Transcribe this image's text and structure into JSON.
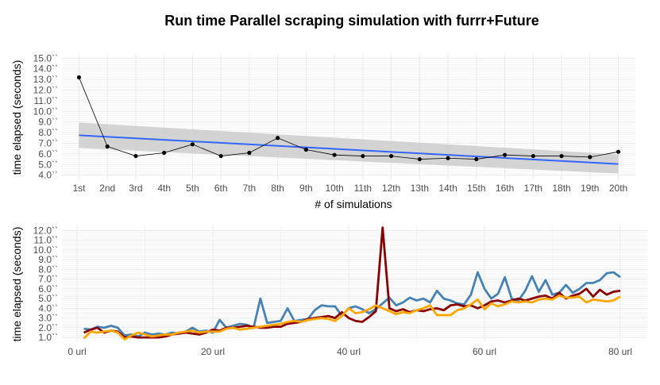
{
  "title": "Run time Parallel scraping simulation with furrr+Future",
  "colors": {
    "series_point_line": "#000000",
    "trend_line": "#3366ff",
    "confidence_band": "#cccccc",
    "dark_red": "#8b0000",
    "steel_blue": "#4682b4",
    "orange": "#ffa500",
    "grid": "#ebebeb"
  },
  "chart_data": [
    {
      "type": "line",
      "title": "Run time Parallel scraping simulation with furrr+Future",
      "xlabel": "# of simulations",
      "ylabel": "time elapsed (seconds)",
      "categories": [
        "1st",
        "2nd",
        "3rd",
        "4th",
        "5th",
        "6th",
        "7th",
        "8th",
        "9th",
        "10th",
        "11th",
        "12th",
        "13th",
        "14th",
        "15th",
        "16th",
        "17th",
        "18th",
        "19th",
        "20th"
      ],
      "y_ticks": [
        "4.0``",
        "5.0``",
        "6.0``",
        "7.0``",
        "8.0``",
        "9.0``",
        "10.0``",
        "11.0``",
        "12.0``",
        "13.0``",
        "14.0``",
        "15.0``"
      ],
      "ylim": [
        3.6,
        15.4
      ],
      "grid": true,
      "series": [
        {
          "values": [
            13.2,
            6.7,
            5.8,
            6.1,
            6.9,
            5.8,
            6.1,
            7.5,
            6.4,
            5.9,
            5.8,
            5.8,
            5.5,
            5.6,
            5.5,
            5.9,
            5.8,
            5.8,
            5.7,
            6.2
          ]
        }
      ],
      "trend": {
        "method": "linear",
        "start": 7.75,
        "end": 5.05,
        "band_start": [
          6.55,
          8.95
        ],
        "band_end": [
          4.15,
          5.95
        ]
      }
    },
    {
      "type": "line",
      "xlabel": "",
      "ylabel": "time elapsed (seconds)",
      "x_ticks": [
        0,
        20,
        40,
        60,
        80
      ],
      "x_tick_labels": [
        "0 url",
        "20 url",
        "40 url",
        "60 url",
        "80 url"
      ],
      "y_ticks": [
        "1.0``",
        "2.0``",
        "3.0``",
        "4.0``",
        "5.0``",
        "6.0``",
        "7.0``",
        "8.0``",
        "9.0``",
        "10.0``",
        "11.0``",
        "12.0``"
      ],
      "xlim": [
        -1,
        81
      ],
      "ylim": [
        0.6,
        12.6
      ],
      "grid": true,
      "series": [
        {
          "color": "steel_blue",
          "x": [
            1,
            2,
            3,
            4,
            5,
            6,
            7,
            8,
            9,
            10,
            11,
            12,
            13,
            14,
            15,
            16,
            17,
            18,
            19,
            20,
            21,
            22,
            23,
            24,
            25,
            26,
            27,
            28,
            29,
            30,
            31,
            32,
            33,
            34,
            35,
            36,
            37,
            38,
            39,
            40,
            41,
            42,
            43,
            44,
            45,
            46,
            47,
            48,
            49,
            50,
            51,
            52,
            53,
            54,
            55,
            56,
            57,
            58,
            59,
            60,
            61,
            62,
            63,
            64,
            65,
            66,
            67,
            68,
            69,
            70,
            71,
            72,
            73,
            74,
            75,
            76,
            77,
            78,
            79,
            80
          ],
          "values": [
            1.9,
            1.8,
            2.1,
            2.0,
            2.2,
            2.0,
            1.2,
            1.3,
            1.1,
            1.5,
            1.3,
            1.4,
            1.3,
            1.5,
            1.4,
            1.6,
            2.0,
            1.6,
            1.7,
            1.5,
            2.8,
            2.0,
            2.2,
            2.4,
            2.3,
            2.0,
            5.0,
            2.5,
            2.6,
            2.7,
            4.0,
            2.7,
            2.8,
            2.9,
            3.8,
            4.3,
            4.2,
            4.2,
            3.2,
            4.0,
            4.2,
            3.9,
            3.5,
            3.9,
            4.5,
            5.1,
            4.3,
            4.6,
            5.1,
            4.8,
            5.0,
            4.6,
            5.8,
            5.0,
            4.8,
            4.5,
            4.4,
            5.4,
            7.7,
            6.0,
            5.0,
            5.5,
            7.2,
            5.0,
            4.8,
            5.8,
            7.3,
            5.7,
            6.9,
            5.4,
            5.6,
            6.4,
            5.6,
            6.0,
            6.6,
            6.6,
            6.9,
            7.6,
            7.7,
            7.2
          ]
        },
        {
          "color": "dark_red",
          "x": [
            1,
            2,
            3,
            4,
            5,
            6,
            7,
            8,
            9,
            10,
            11,
            12,
            13,
            14,
            15,
            16,
            17,
            18,
            19,
            20,
            21,
            22,
            23,
            24,
            25,
            26,
            27,
            28,
            29,
            30,
            31,
            32,
            33,
            34,
            35,
            36,
            37,
            38,
            39,
            40,
            41,
            42,
            43,
            44,
            45,
            46,
            47,
            48,
            49,
            50,
            51,
            52,
            53,
            54,
            55,
            56,
            57,
            58,
            59,
            60,
            61,
            62,
            63,
            64,
            65,
            66,
            67,
            68,
            69,
            70,
            71,
            72,
            73,
            74,
            75,
            76,
            77,
            78,
            79,
            80
          ],
          "values": [
            1.5,
            1.8,
            2.0,
            1.5,
            1.7,
            1.6,
            1.0,
            1.1,
            1.0,
            1.0,
            1.0,
            1.0,
            1.1,
            1.3,
            1.4,
            1.5,
            1.4,
            1.3,
            1.5,
            1.8,
            1.7,
            2.0,
            2.0,
            2.1,
            2.2,
            2.1,
            2.0,
            2.0,
            2.1,
            2.1,
            2.4,
            2.5,
            2.6,
            2.9,
            3.0,
            3.1,
            3.2,
            3.0,
            3.6,
            3.0,
            2.7,
            2.6,
            3.1,
            3.7,
            12.3,
            4.0,
            3.7,
            3.9,
            3.6,
            3.8,
            3.7,
            3.9,
            4.0,
            3.8,
            4.3,
            4.4,
            4.2,
            4.3,
            4.0,
            4.3,
            4.7,
            4.8,
            4.6,
            4.8,
            5.0,
            4.8,
            5.0,
            5.2,
            5.3,
            5.0,
            5.6,
            5.0,
            5.3,
            5.5,
            6.0,
            5.2,
            5.9,
            5.4,
            5.7,
            5.8
          ]
        },
        {
          "color": "orange",
          "x": [
            1,
            2,
            3,
            4,
            5,
            6,
            7,
            8,
            9,
            10,
            11,
            12,
            13,
            14,
            15,
            16,
            17,
            18,
            19,
            20,
            21,
            22,
            23,
            24,
            25,
            26,
            27,
            28,
            29,
            30,
            31,
            32,
            33,
            34,
            35,
            36,
            37,
            38,
            39,
            40,
            41,
            42,
            43,
            44,
            45,
            46,
            47,
            48,
            49,
            50,
            51,
            52,
            53,
            54,
            55,
            56,
            57,
            58,
            59,
            60,
            61,
            62,
            63,
            64,
            65,
            66,
            67,
            68,
            69,
            70,
            71,
            72,
            73,
            74,
            75,
            76,
            77,
            78,
            79,
            80
          ],
          "values": [
            0.9,
            1.6,
            1.5,
            1.6,
            1.7,
            1.5,
            0.8,
            1.2,
            1.5,
            1.3,
            1.1,
            1.2,
            1.3,
            1.3,
            1.5,
            1.6,
            1.7,
            1.5,
            1.6,
            1.6,
            1.6,
            1.9,
            2.0,
            1.8,
            1.9,
            2.0,
            2.1,
            2.2,
            2.3,
            2.4,
            2.6,
            2.7,
            2.6,
            2.8,
            2.9,
            3.0,
            2.9,
            2.7,
            3.2,
            4.0,
            3.5,
            3.6,
            3.9,
            4.3,
            4.0,
            3.7,
            3.4,
            3.6,
            3.5,
            3.8,
            4.0,
            4.3,
            3.3,
            3.3,
            3.3,
            3.8,
            4.0,
            4.4,
            4.9,
            3.9,
            4.5,
            4.2,
            4.4,
            4.7,
            4.6,
            4.7,
            4.6,
            4.9,
            5.0,
            4.9,
            5.3,
            5.1,
            5.1,
            5.2,
            4.6,
            4.9,
            4.8,
            4.7,
            4.8,
            5.2
          ]
        }
      ]
    }
  ]
}
